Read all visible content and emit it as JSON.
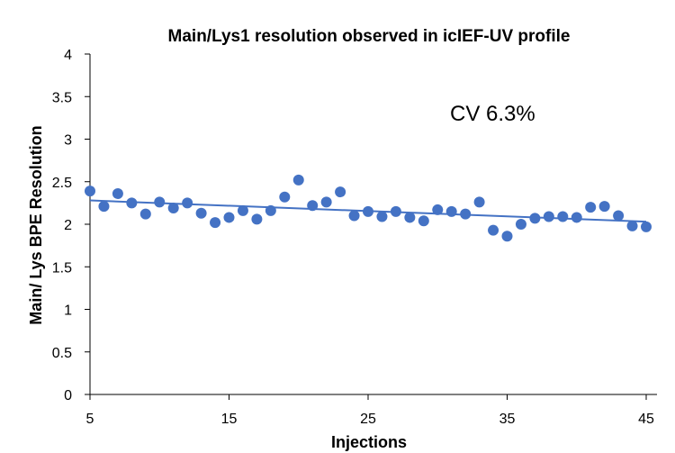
{
  "chart_data": {
    "type": "scatter",
    "title": "Main/Lys1 resolution observed in icIEF-UV profile",
    "xlabel": "Injections",
    "ylabel": "Main/ Lys BPE Resolution",
    "xlim": [
      5,
      45
    ],
    "ylim": [
      0,
      4
    ],
    "x_ticks": [
      "5",
      "15",
      "25",
      "35",
      "45"
    ],
    "y_ticks": [
      "0",
      "0.5",
      "1",
      "1.5",
      "2",
      "2.5",
      "3",
      "3.5",
      "4"
    ],
    "grid": false,
    "legend": "none",
    "annotation": "CV 6.3%",
    "marker_color": "#4472C4",
    "trendline": {
      "type": "linear",
      "start": [
        5,
        2.28
      ],
      "end": [
        45,
        2.03
      ],
      "color": "#4472C4"
    },
    "series": [
      {
        "x": [
          5,
          6,
          7,
          8,
          9,
          10,
          11,
          12,
          13,
          14,
          15,
          16,
          17,
          18,
          19,
          20,
          21,
          22,
          23,
          24,
          25,
          26,
          27,
          28,
          29,
          30,
          31,
          32,
          33,
          34,
          35,
          36,
          37,
          38,
          39,
          40,
          41,
          42,
          43,
          44,
          45
        ],
        "y": [
          2.39,
          2.21,
          2.36,
          2.25,
          2.12,
          2.26,
          2.19,
          2.25,
          2.13,
          2.02,
          2.08,
          2.16,
          2.06,
          2.16,
          2.32,
          2.52,
          2.22,
          2.26,
          2.38,
          2.1,
          2.15,
          2.09,
          2.15,
          2.08,
          2.04,
          2.17,
          2.15,
          2.12,
          2.26,
          1.93,
          1.86,
          2.0,
          2.07,
          2.09,
          2.09,
          2.08,
          2.2,
          2.21,
          2.1,
          1.98,
          1.97
        ]
      }
    ]
  }
}
